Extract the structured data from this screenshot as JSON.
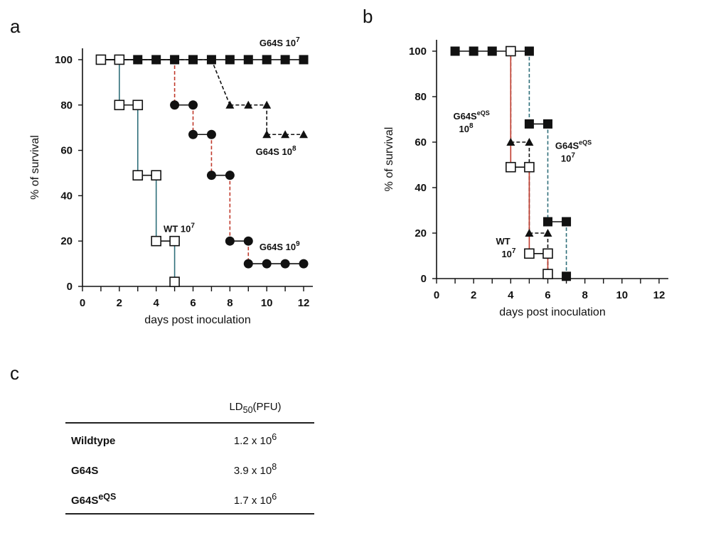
{
  "panels": {
    "a": "a",
    "b": "b",
    "c": "c"
  },
  "chart_data": [
    {
      "id": "a",
      "type": "line",
      "style": "step",
      "title": "",
      "xlabel": "days post inoculation",
      "ylabel": "% of survival",
      "xlim": [
        0,
        12.5
      ],
      "ylim": [
        0,
        105
      ],
      "xticks": [
        0,
        2,
        4,
        6,
        8,
        10,
        12
      ],
      "yticks": [
        0,
        20,
        40,
        60,
        80,
        100
      ],
      "series": [
        {
          "name": "G64S 10^7",
          "marker": "square-filled",
          "x": [
            1,
            2,
            3,
            4,
            5,
            6,
            7,
            8,
            9,
            10,
            11,
            12
          ],
          "y": [
            100,
            100,
            100,
            100,
            100,
            100,
            100,
            100,
            100,
            100,
            100,
            100
          ]
        },
        {
          "name": "G64S 10^8",
          "marker": "triangle-filled",
          "x": [
            1,
            2,
            3,
            4,
            5,
            6,
            7,
            8,
            9,
            10,
            10,
            11,
            12
          ],
          "y": [
            100,
            100,
            100,
            100,
            100,
            100,
            100,
            80,
            80,
            80,
            67,
            67,
            67
          ]
        },
        {
          "name": "G64S 10^9",
          "marker": "circle-filled",
          "x": [
            1,
            2,
            3,
            4,
            5,
            5,
            6,
            6,
            7,
            7,
            8,
            8,
            9,
            9,
            10,
            11,
            12
          ],
          "y": [
            100,
            100,
            100,
            100,
            100,
            80,
            80,
            67,
            67,
            49,
            49,
            20,
            20,
            10,
            10,
            10,
            10
          ]
        },
        {
          "name": "WT 10^7",
          "marker": "square-open",
          "x": [
            1,
            2,
            2,
            3,
            3,
            4,
            4,
            5,
            5
          ],
          "y": [
            100,
            100,
            80,
            80,
            49,
            49,
            20,
            20,
            2
          ]
        }
      ],
      "annotations": [
        {
          "base": "G64S 10",
          "exp": "7",
          "x": 9.6,
          "y": 106
        },
        {
          "base": "G64S 10",
          "exp": "8",
          "x": 9.4,
          "y": 58
        },
        {
          "base": "G64S 10",
          "exp": "9",
          "x": 9.6,
          "y": 16
        },
        {
          "base": "WT 10",
          "exp": "7",
          "x": 4.4,
          "y": 24
        }
      ]
    },
    {
      "id": "b",
      "type": "line",
      "style": "step",
      "title": "",
      "xlabel": "days post inoculation",
      "ylabel": "% of survival",
      "xlim": [
        0,
        12.5
      ],
      "ylim": [
        0,
        105
      ],
      "xticks": [
        0,
        2,
        4,
        6,
        8,
        10,
        12
      ],
      "yticks": [
        0,
        20,
        40,
        60,
        80,
        100
      ],
      "series": [
        {
          "name": "G64SeQS 10^7",
          "marker": "square-filled",
          "x": [
            1,
            2,
            3,
            4,
            5,
            5,
            6,
            6,
            7,
            7
          ],
          "y": [
            100,
            100,
            100,
            100,
            100,
            68,
            68,
            25,
            25,
            1
          ]
        },
        {
          "name": "G64SeQS 10^8",
          "marker": "triangle-filled",
          "x": [
            4,
            4,
            5,
            5,
            6,
            6
          ],
          "y": [
            100,
            60,
            60,
            20,
            20,
            2
          ]
        },
        {
          "name": "WT 10^7",
          "marker": "square-open",
          "x": [
            4,
            4,
            5,
            5,
            6,
            6
          ],
          "y": [
            100,
            49,
            49,
            11,
            11,
            2
          ]
        }
      ],
      "annotations": [
        {
          "base": "G64S",
          "sup": "eQS",
          "line2": "10",
          "exp2": "8",
          "x": 0.9,
          "y": 70
        },
        {
          "base": "G64S",
          "sup": "eQS",
          "line2": "10",
          "exp2": "7",
          "x": 6.4,
          "y": 57
        },
        {
          "base": "WT",
          "line2": "10",
          "exp2": "7",
          "x": 3.2,
          "y": 15
        }
      ]
    },
    {
      "id": "c",
      "type": "table",
      "header": {
        "base": "LD",
        "sub": "50",
        "suffix": "(PFU)"
      },
      "rows": [
        {
          "label": "Wildtype",
          "label_sup": "",
          "mant": "1.2 x 10",
          "exp": "6"
        },
        {
          "label": "G64S",
          "label_sup": "",
          "mant": "3.9 x 10",
          "exp": "8"
        },
        {
          "label": "G64S",
          "label_sup": "eQS",
          "mant": "1.7 x 10",
          "exp": "6"
        }
      ]
    }
  ],
  "colors": {
    "ink": "#111111",
    "red_line": "#c0392b",
    "teal_line": "#2f6f7a",
    "gray_line": "#777777"
  }
}
